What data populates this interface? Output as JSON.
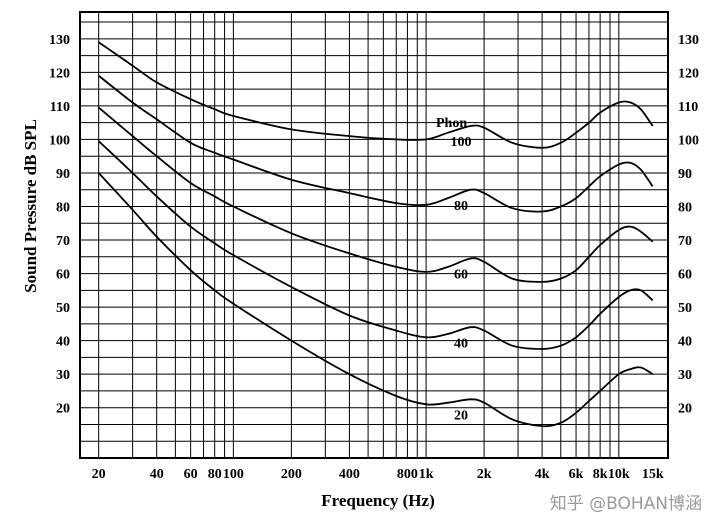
{
  "chart_data": {
    "type": "line",
    "title": "",
    "xlabel": "Frequency (Hz)",
    "ylabel": "Sound Pressure dB SPL",
    "x_scale": "log",
    "xlim": [
      16,
      18000
    ],
    "ylim": [
      5,
      138
    ],
    "grid": true,
    "y_ticks": [
      20,
      30,
      40,
      50,
      60,
      70,
      80,
      90,
      100,
      110,
      120,
      130
    ],
    "x_ticks": [
      {
        "value": 20,
        "label": "20"
      },
      {
        "value": 40,
        "label": "40"
      },
      {
        "value": 60,
        "label": "60"
      },
      {
        "value": 80,
        "label": "80"
      },
      {
        "value": 100,
        "label": "100"
      },
      {
        "value": 200,
        "label": "200"
      },
      {
        "value": 400,
        "label": "400"
      },
      {
        "value": 800,
        "label": "800"
      },
      {
        "value": 1000,
        "label": "1k"
      },
      {
        "value": 2000,
        "label": "2k"
      },
      {
        "value": 4000,
        "label": "4k"
      },
      {
        "value": 6000,
        "label": "6k"
      },
      {
        "value": 8000,
        "label": "8k"
      },
      {
        "value": 10000,
        "label": "10k"
      },
      {
        "value": 15000,
        "label": "15k"
      }
    ],
    "legend_title": "Phon",
    "series": [
      {
        "name": "100",
        "points": [
          [
            20,
            129
          ],
          [
            30,
            122
          ],
          [
            40,
            117
          ],
          [
            60,
            112
          ],
          [
            80,
            109
          ],
          [
            100,
            107
          ],
          [
            200,
            103
          ],
          [
            400,
            101
          ],
          [
            700,
            100
          ],
          [
            1000,
            100
          ],
          [
            1300,
            102
          ],
          [
            1700,
            104
          ],
          [
            2000,
            103.5
          ],
          [
            2800,
            99
          ],
          [
            4000,
            97.5
          ],
          [
            5000,
            99
          ],
          [
            6000,
            102
          ],
          [
            7000,
            105
          ],
          [
            8000,
            108
          ],
          [
            10000,
            111
          ],
          [
            11500,
            111
          ],
          [
            13000,
            109
          ],
          [
            15000,
            104
          ]
        ]
      },
      {
        "name": "80",
        "points": [
          [
            20,
            119
          ],
          [
            30,
            111
          ],
          [
            40,
            106
          ],
          [
            60,
            99
          ],
          [
            80,
            96
          ],
          [
            100,
            94
          ],
          [
            200,
            88
          ],
          [
            400,
            84
          ],
          [
            700,
            81
          ],
          [
            1000,
            80.5
          ],
          [
            1300,
            82.5
          ],
          [
            1700,
            85
          ],
          [
            2000,
            84
          ],
          [
            2800,
            79.5
          ],
          [
            4000,
            78.5
          ],
          [
            5000,
            80
          ],
          [
            6000,
            82.5
          ],
          [
            7000,
            86
          ],
          [
            8000,
            89
          ],
          [
            10000,
            92.5
          ],
          [
            11500,
            93
          ],
          [
            13000,
            91
          ],
          [
            15000,
            86
          ]
        ]
      },
      {
        "name": "60",
        "points": [
          [
            20,
            109.5
          ],
          [
            30,
            101
          ],
          [
            40,
            95
          ],
          [
            60,
            87
          ],
          [
            80,
            83
          ],
          [
            100,
            80
          ],
          [
            200,
            72
          ],
          [
            400,
            66
          ],
          [
            700,
            62
          ],
          [
            1000,
            60.5
          ],
          [
            1300,
            62
          ],
          [
            1700,
            64.5
          ],
          [
            2000,
            63.5
          ],
          [
            2800,
            58.5
          ],
          [
            4000,
            57.5
          ],
          [
            5000,
            58.5
          ],
          [
            6000,
            61
          ],
          [
            7000,
            65
          ],
          [
            8000,
            68.5
          ],
          [
            10000,
            73
          ],
          [
            11500,
            74
          ],
          [
            13000,
            72.5
          ],
          [
            15000,
            69.5
          ]
        ]
      },
      {
        "name": "40",
        "points": [
          [
            20,
            99.5
          ],
          [
            30,
            90
          ],
          [
            40,
            83
          ],
          [
            60,
            74
          ],
          [
            80,
            69
          ],
          [
            100,
            65.5
          ],
          [
            200,
            56
          ],
          [
            400,
            47.5
          ],
          [
            700,
            43
          ],
          [
            1000,
            41
          ],
          [
            1300,
            42
          ],
          [
            1700,
            44
          ],
          [
            2000,
            43
          ],
          [
            2800,
            38.5
          ],
          [
            4000,
            37.5
          ],
          [
            5000,
            38.5
          ],
          [
            6000,
            41
          ],
          [
            7000,
            44.5
          ],
          [
            8000,
            48
          ],
          [
            10000,
            53
          ],
          [
            11500,
            55
          ],
          [
            13000,
            55
          ],
          [
            15000,
            52
          ]
        ]
      },
      {
        "name": "20",
        "points": [
          [
            20,
            90
          ],
          [
            30,
            79
          ],
          [
            40,
            71
          ],
          [
            60,
            61
          ],
          [
            80,
            55
          ],
          [
            100,
            51
          ],
          [
            200,
            40
          ],
          [
            400,
            30
          ],
          [
            700,
            23.5
          ],
          [
            1000,
            21
          ],
          [
            1300,
            21.5
          ],
          [
            1700,
            22.5
          ],
          [
            2000,
            21.5
          ],
          [
            2800,
            16.5
          ],
          [
            4000,
            14.5
          ],
          [
            5000,
            15.5
          ],
          [
            6000,
            18.5
          ],
          [
            7000,
            22
          ],
          [
            8000,
            25
          ],
          [
            10000,
            30
          ],
          [
            11500,
            31.5
          ],
          [
            13000,
            32
          ],
          [
            15000,
            30
          ]
        ]
      }
    ]
  },
  "watermark": "知乎 @BOHAN博涵"
}
